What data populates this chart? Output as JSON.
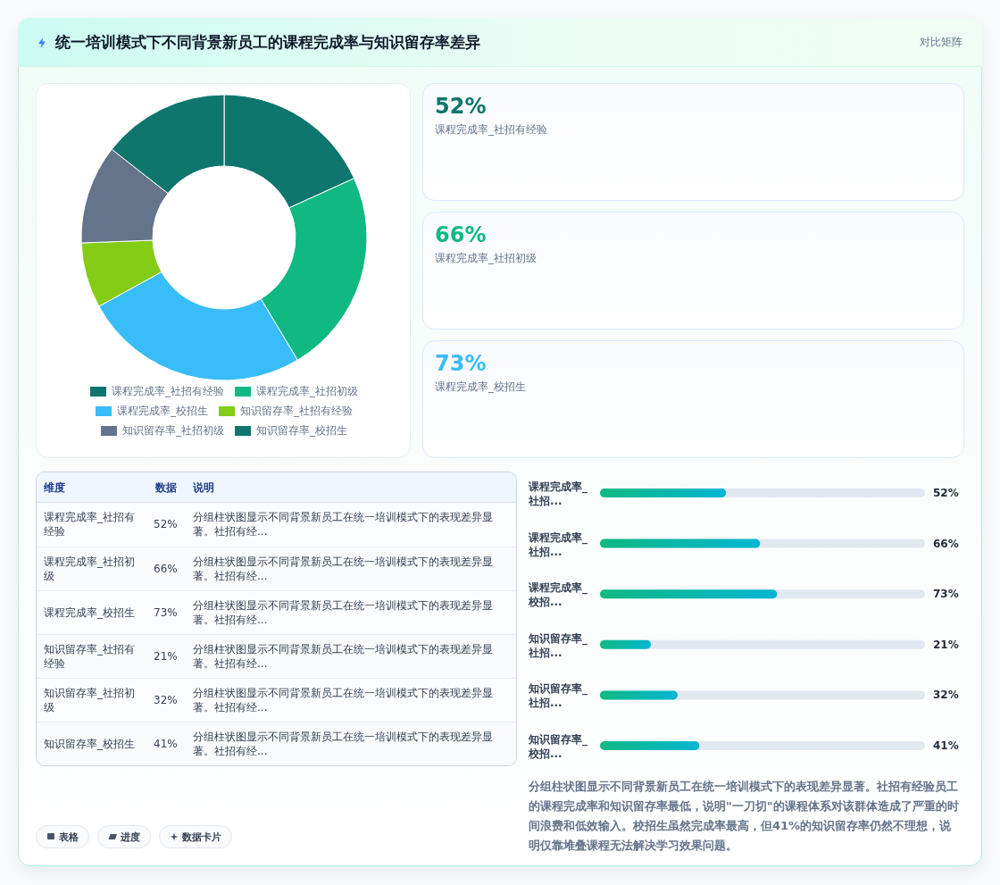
{
  "chart_data": [
    {
      "type": "other",
      "title": "统一培训模式下不同背景新员工的课程完成率与知识留存率差异",
      "subtitle": "对比矩阵"
    },
    {
      "type": "donut",
      "categories": [
        "课程完成率_社招有经验",
        "课程完成率_社招初级",
        "课程完成率_校招生",
        "知识留存率_社招有经验",
        "知识留存率_社招初级",
        "知识留存率_校招生"
      ],
      "values": [
        18.2,
        23.2,
        25.6,
        7.4,
        11.2,
        14.4
      ],
      "colors": [
        "#0f766e",
        "#10b981",
        "#38bdf8",
        "#84cc16",
        "#64748b",
        "#0f766e"
      ],
      "legend": "bottom"
    },
    {
      "type": "other",
      "categories": [
        "课程完成率_社招有经验",
        "课程完成率_社招初级",
        "课程完成率_校招生"
      ],
      "values": [
        52,
        66,
        73
      ],
      "value_labels": [
        "52%",
        "66%",
        "73%"
      ]
    },
    {
      "type": "other",
      "xlabel": "维度",
      "ylabel": "数据",
      "categories": [
        "课程完成率_社招有经验",
        "课程完成率_社招初级",
        "课程完成率_校招生",
        "知识留存率_社招有经验",
        "知识留存率_社招初级",
        "知识留存率_校招生"
      ],
      "values": [
        52,
        66,
        73,
        21,
        32,
        41
      ],
      "value_labels": [
        "52%",
        "66%",
        "73%",
        "21%",
        "32%",
        "41%"
      ],
      "annotations": [
        "说明",
        "分组柱状图显示不同背景新员工在统一培训模式下的表现差异显著。社招有经...",
        "分组柱状图显示不同背景新员工在统一培训模式下的表现差异显著。社招有经...",
        "分组柱状图显示不同背景新员工在统一培训模式下的表现差异显著。社招有经...",
        "分组柱状图显示不同背景新员工在统一培训模式下的表现差异显著。社招有经...",
        "分组柱状图显示不同背景新员工在统一培训模式下的表现差异显著。社招有经...",
        "分组柱状图显示不同背景新员工在统一培训模式下的表现差异显著。社招有经..."
      ]
    },
    {
      "type": "bar",
      "orientation": "horizontal",
      "categories": [
        "课程完成率_社招...",
        "课程完成率_社招...",
        "课程完成率_校招...",
        "知识留存率_社招...",
        "知识留存率_社招...",
        "知识留存率_校招..."
      ],
      "values": [
        52,
        66,
        73,
        21,
        32,
        41
      ],
      "value_labels": [
        "52%",
        "66%",
        "73%",
        "21%",
        "32%",
        "41%"
      ],
      "color": "#10b981",
      "xlim": [
        0,
        134
      ],
      "tick_labels": false,
      "annotations": [
        "分组柱状图显示不同背景新员工在统一培训模式下的表现差异显著。社招有经验员工的课程完成率和知识留存率最低，说明\"一刀切\"的课程体系对该群体造成了严重的时间浪费和低效输入。校招生虽然完成率最高，但41%的知识留存率仍然不理想，说明仅靠堆叠课程无法解决学习效果问题。"
      ]
    },
    {
      "type": "other",
      "annotations": [
        "表格",
        "进度",
        "数据卡片"
      ]
    }
  ]
}
